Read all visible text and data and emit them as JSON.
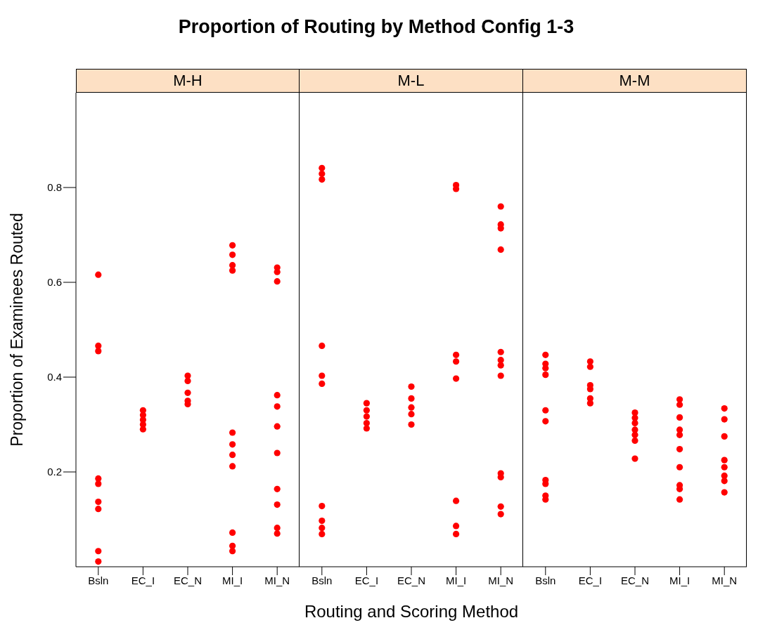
{
  "chart_data": [
    {
      "type": "scatter",
      "title": "Proportion of Routing by Method Config 1-3",
      "subtitle": "M-H",
      "ylabel": "Proportion of Examinees Routed",
      "categories": [
        "Bsln",
        "EC_I",
        "EC_N",
        "MI_I",
        "MI_N"
      ],
      "ylim": [
        0,
        1
      ],
      "yticks": [
        0.2,
        0.4,
        0.6,
        0.8
      ],
      "marker": "circle",
      "series": [
        {
          "color": "#ff0000",
          "x": [
            "Bsln",
            "Bsln",
            "Bsln",
            "Bsln",
            "Bsln",
            "Bsln",
            "Bsln",
            "Bsln",
            "Bsln",
            "EC_I",
            "EC_I",
            "EC_I",
            "EC_I",
            "EC_I",
            "EC_I",
            "EC_N",
            "EC_N",
            "EC_N",
            "EC_N",
            "EC_N",
            "EC_N",
            "MI_I",
            "MI_I",
            "MI_I",
            "MI_I",
            "MI_I",
            "MI_I",
            "MI_I",
            "MI_I",
            "MI_I",
            "MI_I",
            "MI_I",
            "MI_N",
            "MI_N",
            "MI_N",
            "MI_N",
            "MI_N",
            "MI_N",
            "MI_N",
            "MI_N",
            "MI_N",
            "MI_N",
            "MI_N"
          ],
          "values": [
            0.616,
            0.466,
            0.455,
            0.186,
            0.175,
            0.137,
            0.122,
            0.033,
            0.011,
            0.33,
            null,
            0.32,
            0.31,
            0.3,
            0.29,
            0.403,
            0.392,
            0.367,
            null,
            0.35,
            0.343,
            0.678,
            0.658,
            0.636,
            0.625,
            0.283,
            0.258,
            0.236,
            0.212,
            0.072,
            0.044,
            0.033,
            0.631,
            0.622,
            0.602,
            0.362,
            0.338,
            0.296,
            0.24,
            0.164,
            0.131,
            0.082,
            0.07
          ]
        }
      ]
    },
    {
      "type": "scatter",
      "subtitle": "M-L",
      "xlabel": "Routing and Scoring Method",
      "categories": [
        "Bsln",
        "EC_I",
        "EC_N",
        "MI_I",
        "MI_N"
      ],
      "ylim": [
        0,
        1
      ],
      "yticks": [
        0.2,
        0.4,
        0.6,
        0.8
      ],
      "tick_labels": "x",
      "marker": "circle",
      "series": [
        {
          "color": "#ff0000",
          "x": [
            "Bsln",
            "Bsln",
            "Bsln",
            "Bsln",
            "Bsln",
            "Bsln",
            "Bsln",
            "Bsln",
            "Bsln",
            "Bsln",
            "EC_I",
            "EC_I",
            "EC_I",
            "EC_I",
            "EC_I",
            "EC_N",
            "EC_N",
            "EC_N",
            "EC_N",
            "EC_N",
            "MI_I",
            "MI_I",
            "MI_I",
            "MI_I",
            "MI_I",
            "MI_I",
            "MI_I",
            "MI_I",
            "MI_N",
            "MI_N",
            "MI_N",
            "MI_N",
            "MI_N",
            "MI_N",
            "MI_N",
            "MI_N",
            "MI_N",
            "MI_N",
            "MI_N",
            "MI_N"
          ],
          "values": [
            0.841,
            0.829,
            0.817,
            0.466,
            0.403,
            0.386,
            0.128,
            0.097,
            0.082,
            0.069,
            0.345,
            0.33,
            0.317,
            0.303,
            0.292,
            0.38,
            0.355,
            0.336,
            0.322,
            0.3,
            0.805,
            0.797,
            0.447,
            0.433,
            0.397,
            0.139,
            0.086,
            0.069,
            0.76,
            0.722,
            0.714,
            0.669,
            0.453,
            0.436,
            0.425,
            0.403,
            0.197,
            0.189,
            0.127,
            0.111
          ]
        }
      ]
    },
    {
      "type": "scatter",
      "subtitle": "M-M",
      "categories": [
        "Bsln",
        "EC_I",
        "EC_N",
        "MI_I",
        "MI_N"
      ],
      "ylim": [
        0,
        1
      ],
      "yticks": [
        0.2,
        0.4,
        0.6,
        0.8
      ],
      "tick_labels": "x",
      "marker": "circle",
      "series": [
        {
          "color": "#ff0000",
          "x": [
            "Bsln",
            "Bsln",
            "Bsln",
            "Bsln",
            "Bsln",
            "Bsln",
            "Bsln",
            "Bsln",
            "Bsln",
            "Bsln",
            "EC_I",
            "EC_I",
            "EC_I",
            "EC_I",
            "EC_I",
            "EC_I",
            "EC_N",
            "EC_N",
            "EC_N",
            "EC_N",
            "EC_N",
            "EC_N",
            "EC_N",
            "MI_I",
            "MI_I",
            "MI_I",
            "MI_I",
            "MI_I",
            "MI_I",
            "MI_I",
            "MI_I",
            "MI_I",
            "MI_I",
            "MI_N",
            "MI_N",
            "MI_N",
            "MI_N",
            "MI_N",
            "MI_N",
            "MI_N",
            "MI_N"
          ],
          "values": [
            0.447,
            0.428,
            0.419,
            0.405,
            0.33,
            0.307,
            0.183,
            0.175,
            0.15,
            0.142,
            0.433,
            0.422,
            0.383,
            0.375,
            0.355,
            0.345,
            0.325,
            0.314,
            0.303,
            0.289,
            0.278,
            0.266,
            0.228,
            0.353,
            0.342,
            0.315,
            0.289,
            0.278,
            0.248,
            0.21,
            0.172,
            0.164,
            0.142,
            0.334,
            0.311,
            0.275,
            0.225,
            0.21,
            0.192,
            0.181,
            0.157
          ]
        }
      ]
    }
  ]
}
